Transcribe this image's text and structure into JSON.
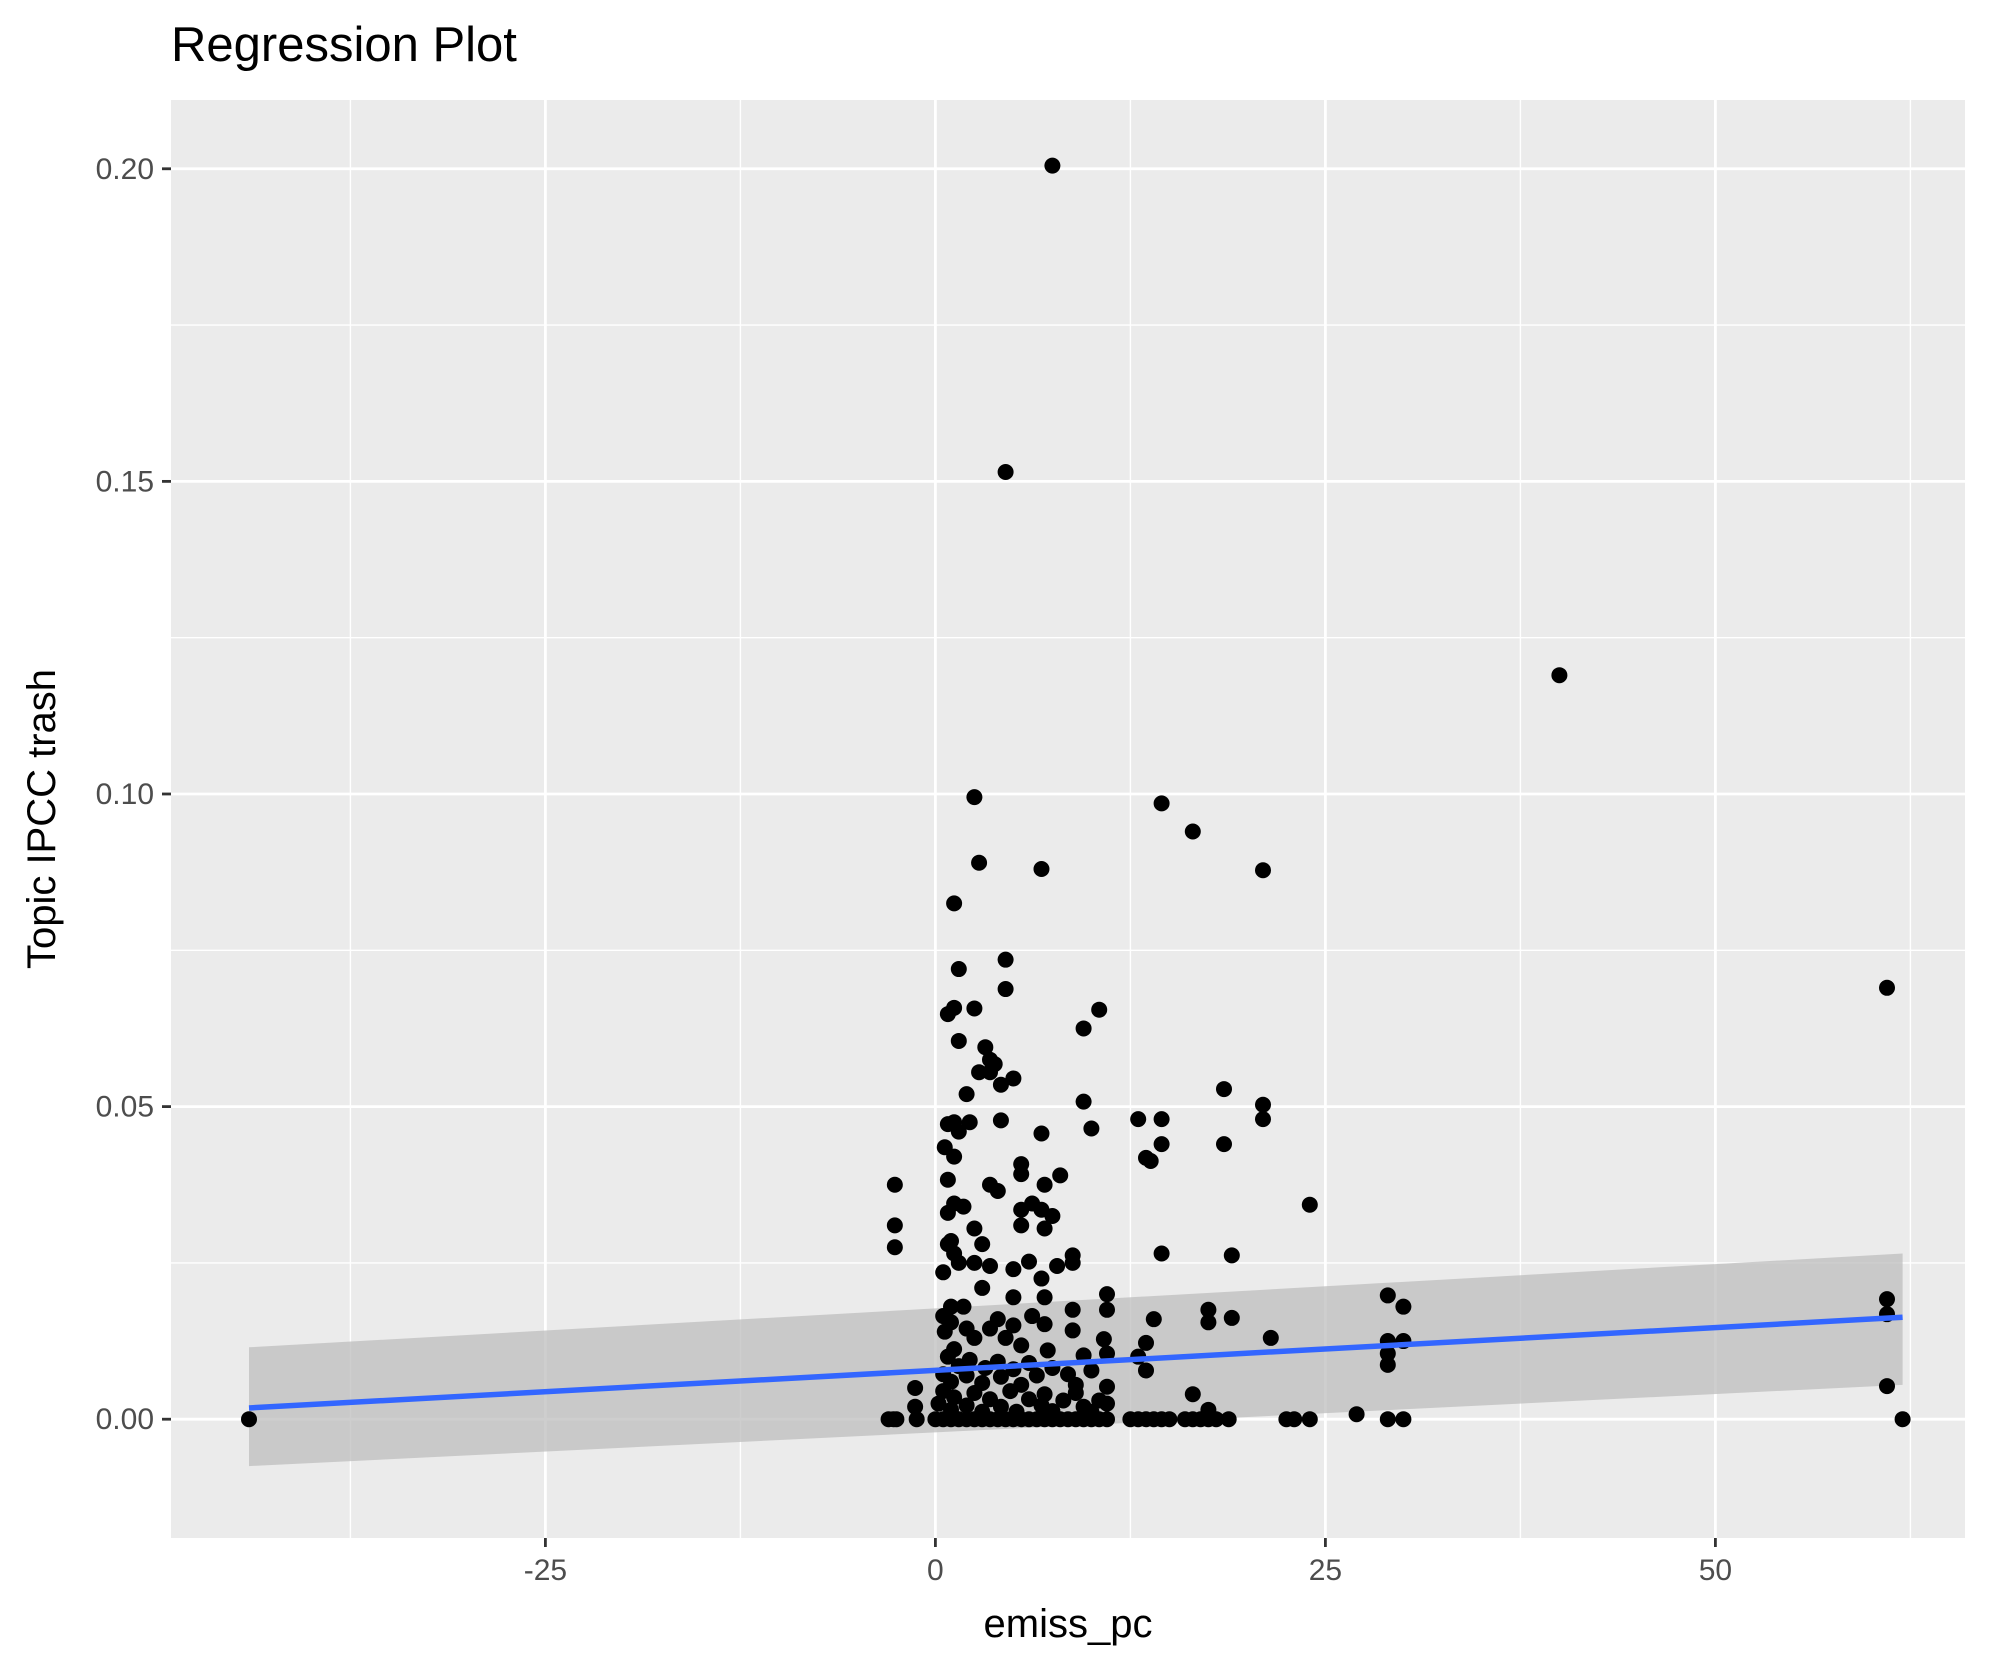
{
  "chart_data": {
    "type": "scatter",
    "title": "Regression Plot",
    "xlabel": "emiss_pc",
    "ylabel": "Topic IPCC trash",
    "xlim": [
      -49,
      66
    ],
    "ylim": [
      -0.019,
      0.211
    ],
    "xticks": [
      -25,
      0,
      25,
      50
    ],
    "xtick_labels": [
      "-25",
      "0",
      "25",
      "50"
    ],
    "yticks": [
      0.0,
      0.05,
      0.1,
      0.15,
      0.2
    ],
    "ytick_labels": [
      "0.00",
      "0.05",
      "0.10",
      "0.15",
      "0.20"
    ],
    "grid": true,
    "legend": "none",
    "colors": {
      "panel": "#ebebeb",
      "grid": "#ffffff",
      "points": "#000000",
      "line": "#3366ff",
      "band": "#bdbdbd"
    },
    "regression": {
      "x": [
        -44,
        62
      ],
      "y": [
        0.0018,
        0.0163
      ],
      "band_lower": [
        -0.0075,
        0.0055
      ],
      "band_upper": [
        0.0115,
        0.0265
      ]
    },
    "points": [
      [
        -44,
        0
      ],
      [
        -3,
        0
      ],
      [
        -2.7,
        0
      ],
      [
        -2.5,
        0
      ],
      [
        -1.2,
        0
      ],
      [
        -1.3,
        0.005
      ],
      [
        -1.3,
        0.002
      ],
      [
        -2.6,
        0.0375
      ],
      [
        -2.6,
        0.031
      ],
      [
        -2.6,
        0.0275
      ],
      [
        7.5,
        0.2005
      ],
      [
        4.5,
        0.1515
      ],
      [
        40,
        0.119
      ],
      [
        2.5,
        0.0995
      ],
      [
        14.5,
        0.0985
      ],
      [
        16.5,
        0.094
      ],
      [
        2.8,
        0.089
      ],
      [
        6.8,
        0.088
      ],
      [
        21,
        0.0878
      ],
      [
        1.2,
        0.0825
      ],
      [
        4.5,
        0.0735
      ],
      [
        1.5,
        0.072
      ],
      [
        4.5,
        0.0688
      ],
      [
        61,
        0.069
      ],
      [
        0.8,
        0.0648
      ],
      [
        1.2,
        0.0658
      ],
      [
        2.5,
        0.0657
      ],
      [
        10.5,
        0.0655
      ],
      [
        9.5,
        0.0625
      ],
      [
        1.5,
        0.0605
      ],
      [
        3.2,
        0.0595
      ],
      [
        3.5,
        0.0575
      ],
      [
        3.8,
        0.0568
      ],
      [
        3.5,
        0.0555
      ],
      [
        2.8,
        0.0555
      ],
      [
        5,
        0.0545
      ],
      [
        4.2,
        0.0535
      ],
      [
        18.5,
        0.0528
      ],
      [
        2,
        0.052
      ],
      [
        9.5,
        0.0508
      ],
      [
        21,
        0.0503
      ],
      [
        0.8,
        0.0472
      ],
      [
        1.2,
        0.0475
      ],
      [
        2.2,
        0.0475
      ],
      [
        4.2,
        0.0478
      ],
      [
        13,
        0.048
      ],
      [
        14.5,
        0.048
      ],
      [
        21,
        0.048
      ],
      [
        10,
        0.0465
      ],
      [
        6.8,
        0.0457
      ],
      [
        1.5,
        0.046
      ],
      [
        0.6,
        0.0435
      ],
      [
        14.5,
        0.044
      ],
      [
        18.5,
        0.044
      ],
      [
        1.2,
        0.042
      ],
      [
        13.5,
        0.0418
      ],
      [
        13.8,
        0.0413
      ],
      [
        5.5,
        0.0408
      ],
      [
        5.5,
        0.0392
      ],
      [
        8,
        0.039
      ],
      [
        0.8,
        0.0383
      ],
      [
        3.5,
        0.0375
      ],
      [
        7,
        0.0375
      ],
      [
        4,
        0.0365
      ],
      [
        1.2,
        0.0345
      ],
      [
        1.8,
        0.034
      ],
      [
        0.8,
        0.033
      ],
      [
        5.5,
        0.0335
      ],
      [
        6.2,
        0.0345
      ],
      [
        6.8,
        0.0335
      ],
      [
        24,
        0.0343
      ],
      [
        7.5,
        0.0325
      ],
      [
        2.5,
        0.0305
      ],
      [
        5.5,
        0.031
      ],
      [
        7,
        0.0305
      ],
      [
        1,
        0.0285
      ],
      [
        0.8,
        0.028
      ],
      [
        3,
        0.028
      ],
      [
        1.2,
        0.0265
      ],
      [
        8.8,
        0.0262
      ],
      [
        14.5,
        0.0265
      ],
      [
        19,
        0.0262
      ],
      [
        1.5,
        0.025
      ],
      [
        2.5,
        0.025
      ],
      [
        3.5,
        0.0245
      ],
      [
        6,
        0.0252
      ],
      [
        8.8,
        0.025
      ],
      [
        7.8,
        0.0245
      ],
      [
        5,
        0.024
      ],
      [
        0.5,
        0.0235
      ],
      [
        6.8,
        0.0225
      ],
      [
        3,
        0.021
      ],
      [
        11,
        0.02
      ],
      [
        5,
        0.0195
      ],
      [
        7,
        0.0195
      ],
      [
        29,
        0.0198
      ],
      [
        1,
        0.018
      ],
      [
        1.8,
        0.018
      ],
      [
        8.8,
        0.0175
      ],
      [
        11,
        0.0175
      ],
      [
        17.5,
        0.0175
      ],
      [
        30,
        0.018
      ],
      [
        0.5,
        0.0165
      ],
      [
        4,
        0.016
      ],
      [
        6.2,
        0.0165
      ],
      [
        14,
        0.016
      ],
      [
        19,
        0.0162
      ],
      [
        17.5,
        0.0155
      ],
      [
        1,
        0.0155
      ],
      [
        5,
        0.015
      ],
      [
        7,
        0.0152
      ],
      [
        2,
        0.0145
      ],
      [
        3.5,
        0.0145
      ],
      [
        8.8,
        0.0142
      ],
      [
        0.6,
        0.014
      ],
      [
        2.5,
        0.013
      ],
      [
        4.5,
        0.013
      ],
      [
        10.8,
        0.0128
      ],
      [
        13.5,
        0.0122
      ],
      [
        21.5,
        0.013
      ],
      [
        29,
        0.0125
      ],
      [
        30,
        0.0125
      ],
      [
        5.5,
        0.0118
      ],
      [
        1.2,
        0.0112
      ],
      [
        7.2,
        0.011
      ],
      [
        0.8,
        0.01
      ],
      [
        9.5,
        0.0102
      ],
      [
        11,
        0.0105
      ],
      [
        13,
        0.01
      ],
      [
        29,
        0.0105
      ],
      [
        2.2,
        0.0095
      ],
      [
        4,
        0.0092
      ],
      [
        6,
        0.009
      ],
      [
        29,
        0.0087
      ],
      [
        1.5,
        0.0085
      ],
      [
        3.2,
        0.0082
      ],
      [
        5,
        0.008
      ],
      [
        7.5,
        0.0082
      ],
      [
        10,
        0.0078
      ],
      [
        13.5,
        0.0078
      ],
      [
        0.5,
        0.0072
      ],
      [
        2,
        0.007
      ],
      [
        4.2,
        0.0068
      ],
      [
        6.5,
        0.007
      ],
      [
        8.5,
        0.0072
      ],
      [
        1,
        0.006
      ],
      [
        3,
        0.0058
      ],
      [
        5.5,
        0.0055
      ],
      [
        9,
        0.0055
      ],
      [
        11,
        0.0052
      ],
      [
        61,
        0.0192
      ],
      [
        61,
        0.0168
      ],
      [
        61,
        0.0053
      ],
      [
        62,
        0
      ],
      [
        0.5,
        0.0045
      ],
      [
        2.5,
        0.0042
      ],
      [
        4.8,
        0.0045
      ],
      [
        7,
        0.004
      ],
      [
        9,
        0.0042
      ],
      [
        16.5,
        0.004
      ],
      [
        1.2,
        0.0035
      ],
      [
        3.5,
        0.0032
      ],
      [
        6,
        0.0032
      ],
      [
        8.2,
        0.003
      ],
      [
        10.5,
        0.003
      ],
      [
        0.2,
        0.0025
      ],
      [
        2,
        0.0022
      ],
      [
        4.2,
        0.002
      ],
      [
        6.8,
        0.0022
      ],
      [
        9.5,
        0.002
      ],
      [
        11,
        0.0025
      ],
      [
        1,
        0.0015
      ],
      [
        3,
        0.0012
      ],
      [
        5.2,
        0.0012
      ],
      [
        7.5,
        0.0013
      ],
      [
        10,
        0.0012
      ],
      [
        17.5,
        0.0015
      ],
      [
        27,
        0.0008
      ],
      [
        0,
        0
      ],
      [
        0.5,
        0
      ],
      [
        1,
        0
      ],
      [
        1.5,
        0
      ],
      [
        2,
        0
      ],
      [
        2.5,
        0
      ],
      [
        3,
        0
      ],
      [
        3.5,
        0
      ],
      [
        4,
        0
      ],
      [
        4.5,
        0
      ],
      [
        5,
        0
      ],
      [
        5.5,
        0
      ],
      [
        6,
        0
      ],
      [
        6.5,
        0
      ],
      [
        7,
        0
      ],
      [
        7.5,
        0
      ],
      [
        8,
        0
      ],
      [
        8.5,
        0
      ],
      [
        9,
        0
      ],
      [
        9.5,
        0
      ],
      [
        10,
        0
      ],
      [
        10.5,
        0
      ],
      [
        11,
        0
      ],
      [
        12.5,
        0
      ],
      [
        13,
        0
      ],
      [
        13.5,
        0
      ],
      [
        14,
        0
      ],
      [
        14.5,
        0
      ],
      [
        15,
        0
      ],
      [
        16,
        0
      ],
      [
        16.5,
        0
      ],
      [
        17,
        0
      ],
      [
        17.5,
        0
      ],
      [
        18,
        0
      ],
      [
        18.8,
        0
      ],
      [
        22.5,
        0
      ],
      [
        23,
        0
      ],
      [
        24,
        0
      ],
      [
        29,
        0
      ],
      [
        30,
        0
      ]
    ]
  }
}
